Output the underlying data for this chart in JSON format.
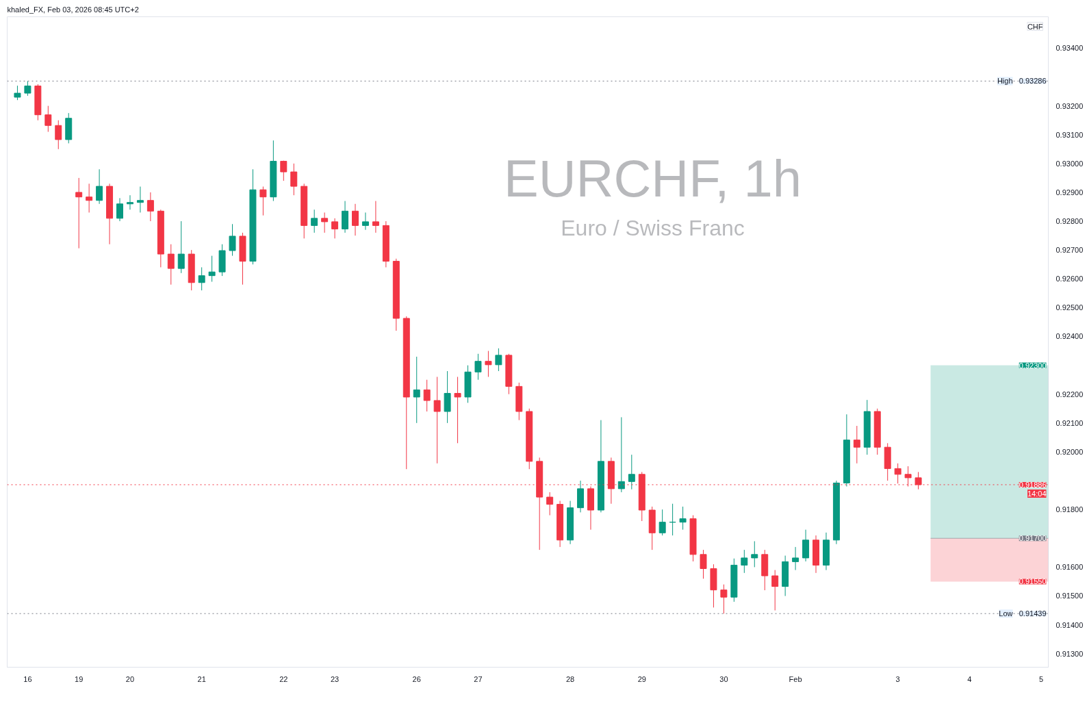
{
  "chart_data": {
    "type": "candlestick",
    "title": "EURCHF, 1h",
    "subtitle": "Euro / Swiss Franc",
    "ylabel": "CHF",
    "annotations": [
      "khaled_FX, Feb 03, 2026 08:45 UTC+2",
      {
        "text": "0.93286",
        "y": 0.93286
      },
      {
        "text": "0.91439",
        "y": 0.91439
      },
      {
        "text": "0.91886",
        "y": 0.91886
      },
      {
        "text": "14:04",
        "y": 0.91886
      },
      "0.91700"
    ],
    "categories": [
      null,
      "16",
      null,
      null,
      null,
      null,
      "19",
      null,
      null,
      null,
      null,
      "20",
      null,
      null,
      null,
      null,
      null,
      null,
      "21",
      null,
      null,
      null,
      null,
      null,
      null,
      null,
      "22",
      null,
      null,
      null,
      null,
      "23",
      null,
      null,
      null,
      null,
      null,
      null,
      null,
      "26",
      null,
      null,
      null,
      null,
      null,
      "27",
      null,
      null,
      null,
      null,
      null,
      null,
      null,
      null,
      "28",
      null,
      null,
      null,
      null,
      null,
      null,
      "29",
      null,
      null,
      null,
      null,
      null,
      null,
      null,
      "30",
      null,
      null,
      null,
      null,
      null,
      null,
      "Feb",
      null,
      null,
      null,
      null,
      null,
      null,
      null,
      null,
      null,
      "3",
      null,
      null,
      null,
      null,
      null,
      null,
      "4",
      null,
      null,
      null,
      null,
      null,
      null,
      "5"
    ],
    "ohlc": [
      [
        0.9323,
        0.9327,
        0.9322,
        0.93244
      ],
      [
        0.93244,
        0.93286,
        0.93235,
        0.93269
      ],
      [
        0.93269,
        0.93275,
        0.9315,
        0.93169
      ],
      [
        0.93169,
        0.932,
        0.9311,
        0.93132
      ],
      [
        0.93132,
        0.9315,
        0.9305,
        0.93083
      ],
      [
        0.93083,
        0.93175,
        0.9307,
        0.93157
      ],
      [
        0.929,
        0.9295,
        0.92706,
        0.92884
      ],
      [
        0.92884,
        0.9293,
        0.9283,
        0.92872
      ],
      [
        0.92872,
        0.9298,
        0.9286,
        0.92921
      ],
      [
        0.92921,
        0.9293,
        0.9272,
        0.9281
      ],
      [
        0.9281,
        0.9288,
        0.928,
        0.9286
      ],
      [
        0.9286,
        0.9289,
        0.9284,
        0.92865
      ],
      [
        0.92865,
        0.9292,
        0.9283,
        0.92872
      ],
      [
        0.92872,
        0.929,
        0.928,
        0.92835
      ],
      [
        0.92835,
        0.9284,
        0.9264,
        0.92686
      ],
      [
        0.92686,
        0.9272,
        0.9258,
        0.92636
      ],
      [
        0.92636,
        0.928,
        0.9262,
        0.92686
      ],
      [
        0.92686,
        0.927,
        0.9256,
        0.92587
      ],
      [
        0.92587,
        0.9264,
        0.9256,
        0.92611
      ],
      [
        0.92611,
        0.9268,
        0.9259,
        0.92624
      ],
      [
        0.92624,
        0.9272,
        0.9261,
        0.92698
      ],
      [
        0.92698,
        0.9279,
        0.9268,
        0.92748
      ],
      [
        0.92748,
        0.9276,
        0.9258,
        0.92661
      ],
      [
        0.92661,
        0.9298,
        0.9265,
        0.92909
      ],
      [
        0.92909,
        0.9292,
        0.9282,
        0.92884
      ],
      [
        0.92884,
        0.9308,
        0.9287,
        0.93008
      ],
      [
        0.93008,
        0.9301,
        0.9294,
        0.92971
      ],
      [
        0.92971,
        0.93,
        0.9289,
        0.92921
      ],
      [
        0.92921,
        0.9293,
        0.9274,
        0.92785
      ],
      [
        0.92785,
        0.9284,
        0.9276,
        0.9281
      ],
      [
        0.9281,
        0.9283,
        0.9276,
        0.92798
      ],
      [
        0.92798,
        0.9281,
        0.9274,
        0.92773
      ],
      [
        0.92773,
        0.9287,
        0.9276,
        0.92835
      ],
      [
        0.92835,
        0.9286,
        0.9275,
        0.92785
      ],
      [
        0.92785,
        0.9283,
        0.9277,
        0.92798
      ],
      [
        0.92798,
        0.9287,
        0.9276,
        0.92785
      ],
      [
        0.92785,
        0.928,
        0.9264,
        0.92661
      ],
      [
        0.92661,
        0.9267,
        0.9242,
        0.92463
      ],
      [
        0.92463,
        0.9247,
        0.9194,
        0.9219
      ],
      [
        0.9219,
        0.9233,
        0.921,
        0.92215
      ],
      [
        0.92215,
        0.9225,
        0.9214,
        0.92178
      ],
      [
        0.92178,
        0.9226,
        0.9196,
        0.9214
      ],
      [
        0.9214,
        0.9228,
        0.921,
        0.92203
      ],
      [
        0.92203,
        0.9226,
        0.9203,
        0.9219
      ],
      [
        0.9219,
        0.923,
        0.9217,
        0.92277
      ],
      [
        0.92277,
        0.9234,
        0.9225,
        0.92314
      ],
      [
        0.92314,
        0.9235,
        0.9226,
        0.92302
      ],
      [
        0.92302,
        0.92359,
        0.9228,
        0.92335
      ],
      [
        0.92335,
        0.9234,
        0.922,
        0.92227
      ],
      [
        0.92227,
        0.9224,
        0.9211,
        0.9214
      ],
      [
        0.9214,
        0.9215,
        0.9194,
        0.91967
      ],
      [
        0.91967,
        0.9198,
        0.9166,
        0.91843
      ],
      [
        0.91843,
        0.9186,
        0.9178,
        0.91818
      ],
      [
        0.91818,
        0.9183,
        0.9167,
        0.91694
      ],
      [
        0.91694,
        0.9183,
        0.9168,
        0.91806
      ],
      [
        0.91806,
        0.919,
        0.9179,
        0.91872
      ],
      [
        0.91872,
        0.9188,
        0.9173,
        0.91798
      ],
      [
        0.91798,
        0.9211,
        0.9179,
        0.91967
      ],
      [
        0.91967,
        0.9198,
        0.9182,
        0.91872
      ],
      [
        0.91872,
        0.9212,
        0.9186,
        0.91897
      ],
      [
        0.91897,
        0.9199,
        0.9187,
        0.91922
      ],
      [
        0.91922,
        0.9193,
        0.9176,
        0.91798
      ],
      [
        0.91798,
        0.9181,
        0.9166,
        0.91719
      ],
      [
        0.91719,
        0.918,
        0.9171,
        0.91756
      ],
      [
        0.91756,
        0.9182,
        0.9171,
        0.91756
      ],
      [
        0.91756,
        0.9181,
        0.9173,
        0.91768
      ],
      [
        0.91768,
        0.9178,
        0.9162,
        0.91644
      ],
      [
        0.91644,
        0.9166,
        0.9156,
        0.91595
      ],
      [
        0.91595,
        0.9161,
        0.9146,
        0.91521
      ],
      [
        0.91521,
        0.9154,
        0.91439,
        0.91496
      ],
      [
        0.91496,
        0.9163,
        0.9148,
        0.91607
      ],
      [
        0.91607,
        0.9166,
        0.9158,
        0.91632
      ],
      [
        0.91632,
        0.9169,
        0.916,
        0.91644
      ],
      [
        0.91644,
        0.9166,
        0.9152,
        0.9157
      ],
      [
        0.9157,
        0.9159,
        0.9145,
        0.91533
      ],
      [
        0.91533,
        0.9164,
        0.915,
        0.91619
      ],
      [
        0.91619,
        0.9167,
        0.9159,
        0.91632
      ],
      [
        0.91632,
        0.9173,
        0.9162,
        0.91694
      ],
      [
        0.91694,
        0.9171,
        0.9158,
        0.91607
      ],
      [
        0.91607,
        0.9172,
        0.9159,
        0.91694
      ],
      [
        0.91694,
        0.919,
        0.9168,
        0.91892
      ],
      [
        0.91892,
        0.9213,
        0.9188,
        0.92041
      ],
      [
        0.92041,
        0.9209,
        0.9196,
        0.92016
      ],
      [
        0.92016,
        0.9218,
        0.9199,
        0.9214
      ],
      [
        0.9214,
        0.9215,
        0.9199,
        0.92016
      ],
      [
        0.92016,
        0.9203,
        0.919,
        0.91942
      ],
      [
        0.91942,
        0.9196,
        0.9189,
        0.91922
      ],
      [
        0.91922,
        0.9195,
        0.9188,
        0.9191
      ],
      [
        0.9191,
        0.9193,
        0.9187,
        0.91886
      ],
      null,
      null,
      null,
      null,
      null,
      null,
      null,
      null,
      null,
      null,
      null,
      null
    ],
    "colors": [
      "#089981",
      "#089981",
      "#f23645",
      "#f23645",
      "#f23645",
      "#089981",
      "#f23645",
      "#f23645",
      "#089981",
      "#f23645",
      "#089981",
      "#089981",
      "#089981",
      "#f23645",
      "#f23645",
      "#f23645",
      "#089981",
      "#f23645",
      "#089981",
      "#089981",
      "#089981",
      "#089981",
      "#f23645",
      "#089981",
      "#f23645",
      "#089981",
      "#f23645",
      "#f23645",
      "#f23645",
      "#089981",
      "#f23645",
      "#f23645",
      "#089981",
      "#f23645",
      "#089981",
      "#f23645",
      "#f23645",
      "#f23645",
      "#f23645",
      "#089981",
      "#f23645",
      "#f23645",
      "#089981",
      "#f23645",
      "#089981",
      "#089981",
      "#f23645",
      "#089981",
      "#f23645",
      "#f23645",
      "#f23645",
      "#f23645",
      "#f23645",
      "#f23645",
      "#089981",
      "#089981",
      "#f23645",
      "#089981",
      "#f23645",
      "#089981",
      "#089981",
      "#f23645",
      "#f23645",
      "#089981",
      "#089981",
      "#089981",
      "#f23645",
      "#f23645",
      "#f23645",
      "#f23645",
      "#089981",
      "#089981",
      "#089981",
      "#f23645",
      "#f23645",
      "#089981",
      "#089981",
      "#089981",
      "#f23645",
      "#089981",
      "#089981",
      "#089981",
      "#f23645",
      "#089981",
      "#f23645",
      "#f23645",
      "#f23645",
      "#f23645",
      "#f23645",
      null,
      null,
      null,
      null,
      null,
      null,
      null,
      null,
      null,
      null,
      null,
      null
    ],
    "ylim": [
      0.91253,
      0.93509
    ],
    "yticks": [
      {
        "value": 0.913,
        "label": "0.91300"
      },
      {
        "value": 0.914,
        "label": "0.91400"
      },
      {
        "value": 0.915,
        "label": "0.91500"
      },
      {
        "value": 0.916,
        "label": "0.91600"
      },
      {
        "value": 0.918,
        "label": "0.91800"
      },
      {
        "value": 0.92,
        "label": "0.92000"
      },
      {
        "value": 0.921,
        "label": "0.92100"
      },
      {
        "value": 0.922,
        "label": "0.92200"
      },
      {
        "value": 0.924,
        "label": "0.92400"
      },
      {
        "value": 0.925,
        "label": "0.92500"
      },
      {
        "value": 0.926,
        "label": "0.92600"
      },
      {
        "value": 0.927,
        "label": "0.92700"
      },
      {
        "value": 0.928,
        "label": "0.92800"
      },
      {
        "value": 0.929,
        "label": "0.92900"
      },
      {
        "value": 0.93,
        "label": "0.93000"
      },
      {
        "value": 0.931,
        "label": "0.93100"
      },
      {
        "value": 0.932,
        "label": "0.93200"
      },
      {
        "value": 0.934,
        "label": "0.93400"
      }
    ],
    "ref_lines": [
      {
        "axis": "y",
        "value": 0.93286,
        "label": "High",
        "color": "#787b86",
        "line_style": "dotted"
      },
      {
        "axis": "y",
        "value": 0.91439,
        "label": "Low",
        "color": "#787b86",
        "line_style": "dotted"
      },
      {
        "axis": "y",
        "value": 0.91886,
        "label": null,
        "color": "#f23645",
        "line_style": "dotted"
      }
    ],
    "bands": [
      {
        "axis": "y",
        "from": 0.917,
        "to": 0.923,
        "label": "0.92300",
        "color": "#089981"
      },
      {
        "axis": "y",
        "from": 0.9155,
        "to": 0.917,
        "label": "0.91550",
        "color": "#f23645"
      }
    ],
    "grid": false
  }
}
